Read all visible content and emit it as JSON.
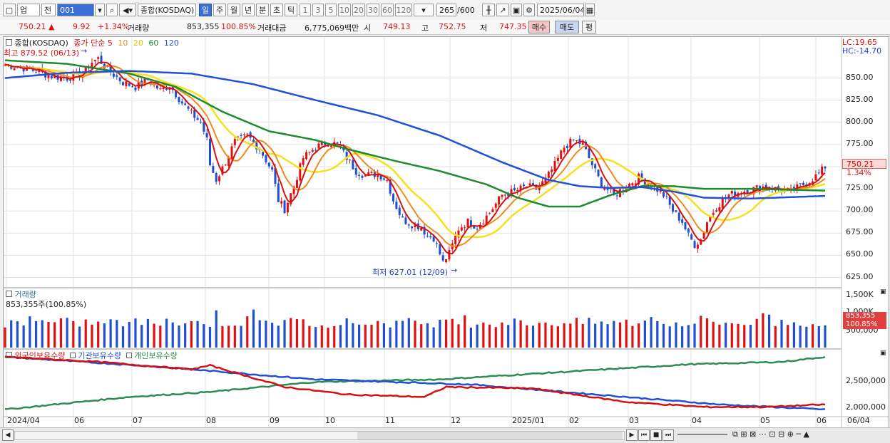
{
  "toolbar": {
    "market": "업",
    "period": "전",
    "code": "001",
    "index_name": "종합(KOSDAQ)",
    "tabs": [
      "일",
      "주",
      "월",
      "년",
      "분",
      "초",
      "틱"
    ],
    "nums": [
      "1",
      "3",
      "5",
      "10",
      "20",
      "30",
      "60",
      "120"
    ],
    "count": "265",
    "count_total": "/600",
    "date": "2025/06/04"
  },
  "info": {
    "price": "750.21 ▲",
    "change": "9.92",
    "change_pct": "+1.34%",
    "volume_label": "거래량",
    "volume": "853,355",
    "volume_pct": "100.85%",
    "amount_label": "거래대금",
    "amount": "6,775,069백만",
    "open_label": "시",
    "open": "749.13",
    "high_label": "고",
    "high": "752.75",
    "low_label": "저",
    "low": "747.35",
    "buy_btn": "매수",
    "sell_btn": "매도",
    "eval_btn": "평"
  },
  "colors": {
    "up": "#e01010",
    "down": "#1f4fd0",
    "ma5": "#d41010",
    "ma10": "#f08a1c",
    "ma20": "#f5e020",
    "ma60": "#1e8a2e",
    "ma120": "#2050d8",
    "foreign": "#d41010",
    "inst": "#2050d8",
    "retail": "#2e8b57"
  },
  "price_panel": {
    "legend_name": "종합(KOSDAQ)",
    "legend_ma": "종가 단순",
    "ma_periods": [
      "5",
      "10",
      "20",
      "60",
      "120"
    ],
    "high_label": "최고 879.52 (06/13)",
    "low_label": "최저 627.01 (12/09)",
    "lc": "LC:19.65",
    "hc": "HC:-14.70",
    "last_price": "750.21",
    "last_pct": "1.34%",
    "ticks": [
      "850.00",
      "825.00",
      "800.00",
      "775.00",
      "750.00",
      "725.00",
      "700.00",
      "675.00",
      "650.00",
      "625.00"
    ]
  },
  "volume_panel": {
    "title": "거래량",
    "value_label": "853,355주(100.85%)",
    "ticks": [
      "1,500K",
      "1,000K",
      "500,000"
    ],
    "last_value": "853,355",
    "last_pct": "100.85%"
  },
  "holding_panel": {
    "legend": [
      "외국인보유수량",
      "기관보유수량",
      "개인보유수량"
    ],
    "ticks": [
      "2,500,000",
      "2,000,000"
    ]
  },
  "x_axis": [
    "2024/04",
    "06",
    "07",
    "08",
    "09",
    "10",
    "11",
    "12",
    "2025/01",
    "02",
    "03",
    "04",
    "05",
    "06"
  ],
  "x_right": "06/04",
  "chart_data": {
    "type": "line",
    "x_ticks": [
      "2024/04",
      "06",
      "07",
      "08",
      "09",
      "10",
      "11",
      "12",
      "2025/01",
      "02",
      "03",
      "04",
      "05",
      "06"
    ],
    "ylim": [
      615,
      885
    ],
    "price_points": [
      [
        0,
        865
      ],
      [
        5,
        862
      ],
      [
        10,
        858
      ],
      [
        15,
        852
      ],
      [
        20,
        850
      ],
      [
        25,
        855
      ],
      [
        28,
        868
      ],
      [
        30,
        872
      ],
      [
        33,
        860
      ],
      [
        38,
        845
      ],
      [
        42,
        840
      ],
      [
        46,
        848
      ],
      [
        50,
        836
      ],
      [
        53,
        842
      ],
      [
        57,
        822
      ],
      [
        60,
        810
      ],
      [
        63,
        800
      ],
      [
        65,
        780
      ],
      [
        66,
        752
      ],
      [
        68,
        735
      ],
      [
        70,
        748
      ],
      [
        74,
        778
      ],
      [
        78,
        785
      ],
      [
        82,
        770
      ],
      [
        86,
        745
      ],
      [
        88,
        712
      ],
      [
        90,
        702
      ],
      [
        93,
        728
      ],
      [
        96,
        760
      ],
      [
        100,
        772
      ],
      [
        104,
        778
      ],
      [
        107,
        775
      ],
      [
        110,
        760
      ],
      [
        113,
        745
      ],
      [
        116,
        740
      ],
      [
        120,
        742
      ],
      [
        123,
        735
      ],
      [
        125,
        712
      ],
      [
        128,
        690
      ],
      [
        131,
        685
      ],
      [
        134,
        682
      ],
      [
        136,
        672
      ],
      [
        138,
        670
      ],
      [
        141,
        642
      ],
      [
        143,
        652
      ],
      [
        146,
        680
      ],
      [
        149,
        688
      ],
      [
        152,
        682
      ],
      [
        156,
        698
      ],
      [
        160,
        718
      ],
      [
        164,
        722
      ],
      [
        168,
        728
      ],
      [
        171,
        725
      ],
      [
        174,
        735
      ],
      [
        177,
        752
      ],
      [
        180,
        772
      ],
      [
        183,
        780
      ],
      [
        186,
        775
      ],
      [
        189,
        752
      ],
      [
        192,
        730
      ],
      [
        196,
        718
      ],
      [
        200,
        728
      ],
      [
        204,
        738
      ],
      [
        208,
        730
      ],
      [
        212,
        718
      ],
      [
        215,
        700
      ],
      [
        218,
        688
      ],
      [
        220,
        672
      ],
      [
        222,
        662
      ],
      [
        224,
        668
      ],
      [
        226,
        688
      ],
      [
        229,
        705
      ],
      [
        233,
        718
      ],
      [
        237,
        722
      ],
      [
        241,
        725
      ],
      [
        245,
        728
      ],
      [
        249,
        724
      ],
      [
        253,
        722
      ],
      [
        256,
        728
      ],
      [
        259,
        734
      ],
      [
        262,
        742
      ],
      [
        264,
        750
      ]
    ],
    "ma120_points": [
      [
        0,
        850
      ],
      [
        20,
        856
      ],
      [
        40,
        858
      ],
      [
        60,
        855
      ],
      [
        80,
        843
      ],
      [
        100,
        825
      ],
      [
        120,
        808
      ],
      [
        140,
        785
      ],
      [
        160,
        755
      ],
      [
        175,
        735
      ],
      [
        185,
        728
      ],
      [
        195,
        726
      ],
      [
        205,
        727
      ],
      [
        215,
        722
      ],
      [
        225,
        715
      ],
      [
        240,
        714
      ],
      [
        264,
        717
      ]
    ],
    "ma60_points": [
      [
        0,
        870
      ],
      [
        20,
        866
      ],
      [
        40,
        855
      ],
      [
        55,
        840
      ],
      [
        70,
        812
      ],
      [
        85,
        790
      ],
      [
        100,
        780
      ],
      [
        110,
        770
      ],
      [
        125,
        757
      ],
      [
        140,
        745
      ],
      [
        155,
        730
      ],
      [
        165,
        715
      ],
      [
        175,
        705
      ],
      [
        185,
        705
      ],
      [
        195,
        718
      ],
      [
        205,
        728
      ],
      [
        215,
        728
      ],
      [
        225,
        725
      ],
      [
        240,
        725
      ],
      [
        264,
        723
      ]
    ],
    "volume_bars_note": "daily bars, red up / blue down",
    "holding": {
      "foreign": [
        [
          0,
          2950000
        ],
        [
          30,
          2850000
        ],
        [
          60,
          2700000
        ],
        [
          66,
          2780000
        ],
        [
          90,
          2350000
        ],
        [
          110,
          2200000
        ],
        [
          135,
          2150000
        ],
        [
          142,
          2350000
        ],
        [
          170,
          2320000
        ],
        [
          200,
          2050000
        ],
        [
          225,
          1950000
        ],
        [
          245,
          1950000
        ],
        [
          264,
          2000000
        ]
      ],
      "inst": [
        [
          0,
          2950000
        ],
        [
          50,
          2750000
        ],
        [
          100,
          2500000
        ],
        [
          150,
          2400000
        ],
        [
          190,
          2200000
        ],
        [
          230,
          2000000
        ],
        [
          264,
          1900000
        ]
      ],
      "retail": [
        [
          0,
          1900000
        ],
        [
          40,
          2150000
        ],
        [
          66,
          2250000
        ],
        [
          100,
          2450000
        ],
        [
          140,
          2500000
        ],
        [
          180,
          2650000
        ],
        [
          220,
          2800000
        ],
        [
          250,
          2850000
        ],
        [
          264,
          2950000
        ]
      ]
    }
  }
}
